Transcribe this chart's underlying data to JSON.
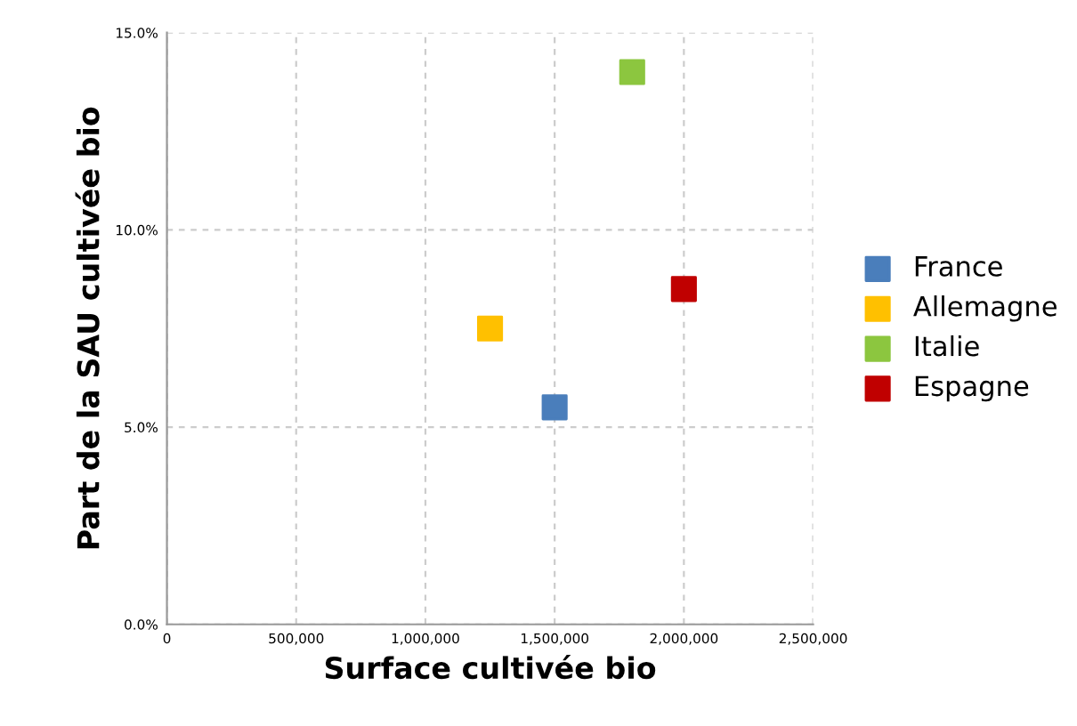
{
  "chart_data": {
    "type": "scatter",
    "xlabel": "Surface cultivée bio",
    "ylabel": "Part de la SAU cultivée bio",
    "series": [
      {
        "name": "France",
        "color": "#4a7ebb",
        "x": [
          1500000
        ],
        "values": [
          5.5
        ]
      },
      {
        "name": "Allemagne",
        "color": "#ffc000",
        "x": [
          1250000
        ],
        "values": [
          7.5
        ]
      },
      {
        "name": "Italie",
        "color": "#8cc63f",
        "x": [
          1800000
        ],
        "values": [
          14.0
        ]
      },
      {
        "name": "Espagne",
        "color": "#c00000",
        "x": [
          2000000
        ],
        "values": [
          8.5
        ]
      }
    ],
    "xlim": [
      0,
      2500000
    ],
    "xticks": [
      {
        "value": 0,
        "label": "0"
      },
      {
        "value": 500000,
        "label": "500,000"
      },
      {
        "value": 1000000,
        "label": "1,000,000"
      },
      {
        "value": 1500000,
        "label": "1,500,000"
      },
      {
        "value": 2000000,
        "label": "2,000,000"
      },
      {
        "value": 2500000,
        "label": "2,500,000"
      }
    ],
    "ylim": [
      0,
      15
    ],
    "yticks": [
      {
        "value": 0,
        "label": "0.0%"
      },
      {
        "value": 5,
        "label": "5.0%"
      },
      {
        "value": 10,
        "label": "10.0%"
      },
      {
        "value": 15,
        "label": "15.0%"
      }
    ],
    "grid": true,
    "legend": "right",
    "marker": "square"
  }
}
